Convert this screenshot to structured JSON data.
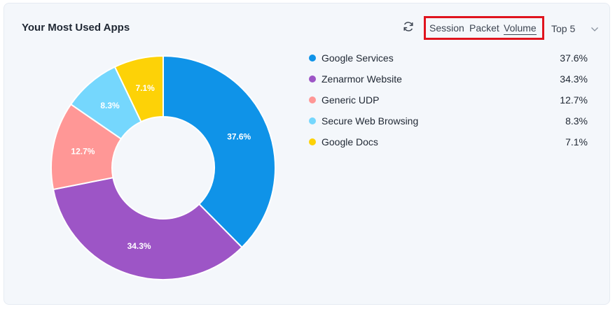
{
  "widget": {
    "title": "Your Most Used Apps",
    "refresh_icon": "refresh-icon",
    "metric_options": [
      "Session",
      "Packet",
      "Volume"
    ],
    "selected_metric": "Volume",
    "top_select": "Top 5",
    "chevron_icon": "chevron-down-icon",
    "highlight_color": "#e0141e"
  },
  "chart_data": {
    "type": "pie",
    "donut": true,
    "categories": [
      "Google Services",
      "Zenarmor Website",
      "Generic UDP",
      "Secure Web Browsing",
      "Google Docs"
    ],
    "values": [
      37.6,
      34.3,
      12.7,
      8.3,
      7.1
    ],
    "value_labels": [
      "37.6%",
      "34.3%",
      "12.7%",
      "8.3%",
      "7.1%"
    ],
    "colors": [
      "#0f93e8",
      "#9d55c6",
      "#ff9796",
      "#75d7fd",
      "#fdd207"
    ],
    "legend_position": "right"
  }
}
